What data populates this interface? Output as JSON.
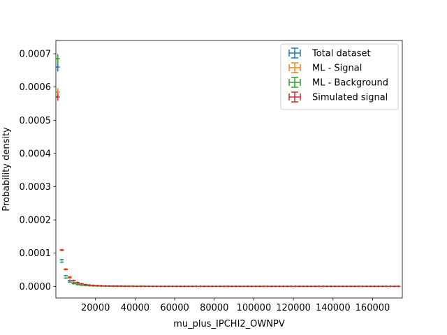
{
  "chart_data": {
    "type": "scatter",
    "xlabel": "mu_plus_IPCHI2_OWNPV",
    "ylabel": "Probability density",
    "xlim": [
      0,
      175000
    ],
    "ylim": [
      -3.5e-05,
      0.00074
    ],
    "x_ticks": [
      20000,
      40000,
      60000,
      80000,
      100000,
      120000,
      140000,
      160000
    ],
    "x_tick_labels": [
      "20000",
      "40000",
      "60000",
      "80000",
      "100000",
      "120000",
      "140000",
      "160000"
    ],
    "y_ticks": [
      0,
      0.0001,
      0.0002,
      0.0003,
      0.0004,
      0.0005,
      0.0006,
      0.0007
    ],
    "y_tick_labels": [
      "0.0000",
      "0.0001",
      "0.0002",
      "0.0003",
      "0.0004",
      "0.0005",
      "0.0006",
      "0.0007"
    ],
    "grid": false,
    "legend_position": "top-right",
    "bin_width": 2000,
    "series": [
      {
        "name": "Total dataset",
        "color": "#1f77b4",
        "x": [
          1000,
          3000,
          5000,
          7000,
          9000,
          11000,
          13000,
          15000,
          17000,
          19000,
          21000,
          23000,
          25000,
          27000,
          29000,
          31000,
          33000,
          35000,
          37000,
          39000,
          41000,
          43000,
          45000,
          47000,
          49000,
          51000,
          53000,
          55000,
          57000,
          59000,
          61000,
          63000,
          65000,
          67000,
          69000,
          71000,
          73000,
          75000,
          77000,
          79000,
          81000,
          83000,
          85000,
          87000,
          89000,
          91000,
          93000,
          95000,
          97000,
          99000,
          101000,
          103000,
          105000,
          107000,
          109000,
          111000,
          113000,
          115000,
          117000,
          119000,
          121000,
          123000,
          125000,
          127000,
          129000,
          131000,
          133000,
          135000,
          137000,
          139000,
          141000,
          143000,
          145000,
          147000,
          149000,
          151000,
          153000,
          155000,
          157000,
          159000,
          161000,
          163000,
          165000,
          167000,
          169000,
          171000,
          173000
        ],
        "y": [
          0.00066,
          8e-05,
          3.2e-05,
          1.8e-05,
          1.1e-05,
          7e-06,
          5e-06,
          3.5e-06,
          2.5e-06,
          2e-06,
          1.5e-06,
          1.2e-06,
          1e-06,
          8e-07,
          7e-07,
          6e-07,
          5e-07,
          4e-07,
          4e-07,
          3e-07,
          3e-07,
          3e-07,
          2e-07,
          2e-07,
          2e-07,
          2e-07,
          1e-07,
          1e-07,
          1e-07,
          1e-07,
          1e-07,
          1e-07,
          1e-07,
          1e-07,
          1e-07,
          1e-07,
          1e-07,
          1e-07,
          1e-07,
          1e-07,
          1e-07,
          1e-07,
          1e-07,
          1e-07,
          1e-07,
          1e-07,
          1e-07,
          1e-07,
          1e-07,
          1e-07,
          1e-07,
          1e-07,
          1e-07,
          1e-07,
          1e-07,
          1e-07,
          1e-07,
          1e-07,
          1e-07,
          1e-07,
          1e-07,
          1e-07,
          1e-07,
          1e-07,
          1e-07,
          1e-07,
          1e-07,
          1e-07,
          1e-07,
          1e-07,
          1e-07,
          1e-07,
          1e-07,
          1e-07,
          1e-07,
          1e-07,
          1e-07,
          1e-07,
          1e-07,
          1e-07,
          1e-07,
          1e-07,
          1e-07,
          1e-07,
          1e-07,
          1e-07,
          1e-07
        ]
      },
      {
        "name": "ML - Signal",
        "color": "#ff7f0e",
        "x": [
          1000,
          3000,
          5000,
          7000,
          9000,
          11000,
          13000,
          15000,
          17000,
          19000,
          21000,
          23000,
          25000,
          27000,
          29000,
          31000,
          33000,
          35000,
          37000,
          39000,
          41000,
          43000,
          45000,
          47000,
          49000,
          51000,
          53000,
          55000,
          57000,
          59000,
          61000,
          63000,
          65000,
          67000,
          69000,
          71000,
          73000,
          75000,
          77000,
          79000,
          81000,
          83000,
          85000,
          87000,
          89000,
          91000,
          93000,
          95000,
          97000,
          99000,
          101000,
          103000,
          105000,
          107000,
          109000,
          111000,
          113000,
          115000,
          117000,
          119000,
          121000,
          123000,
          125000,
          127000,
          129000,
          131000,
          133000,
          135000,
          137000,
          139000,
          141000,
          143000,
          145000,
          147000,
          149000,
          151000,
          153000,
          155000,
          157000,
          159000,
          161000,
          163000,
          165000,
          167000,
          169000,
          171000,
          173000
        ],
        "y": [
          0.000585,
          0.000108,
          5e-05,
          2.5e-05,
          1.6e-05,
          1e-05,
          7e-06,
          5e-06,
          3.8e-06,
          3e-06,
          2.3e-06,
          1.8e-06,
          1.5e-06,
          1.2e-06,
          1e-06,
          9e-07,
          7e-07,
          6e-07,
          6e-07,
          5e-07,
          4e-07,
          4e-07,
          3e-07,
          3e-07,
          3e-07,
          2e-07,
          2e-07,
          2e-07,
          2e-07,
          2e-07,
          1e-07,
          1e-07,
          1e-07,
          1e-07,
          1e-07,
          1e-07,
          1e-07,
          1e-07,
          1e-07,
          1e-07,
          1e-07,
          1e-07,
          1e-07,
          1e-07,
          1e-07,
          1e-07,
          1e-07,
          1e-07,
          1e-07,
          1e-07,
          1e-07,
          1e-07,
          1e-07,
          1e-07,
          1e-07,
          1e-07,
          1e-07,
          1e-07,
          1e-07,
          1e-07,
          1e-07,
          1e-07,
          1e-07,
          1e-07,
          1e-07,
          1e-07,
          1e-07,
          1e-07,
          1e-07,
          1e-07,
          1e-07,
          1e-07,
          1e-07,
          1e-07,
          1e-07,
          1e-07,
          1e-07,
          1e-07,
          1e-07,
          1e-07,
          1e-07,
          1e-07,
          1e-07,
          1e-07,
          1e-07,
          1e-07,
          1e-07
        ]
      },
      {
        "name": "ML - Background",
        "color": "#2ca02c",
        "x": [
          1000,
          3000,
          5000,
          7000,
          9000,
          11000,
          13000,
          15000,
          17000,
          19000,
          21000,
          23000,
          25000,
          27000,
          29000,
          31000,
          33000,
          35000,
          37000,
          39000,
          41000,
          43000,
          45000,
          47000,
          49000,
          51000,
          53000,
          55000,
          57000,
          59000,
          61000,
          63000,
          65000,
          67000,
          69000,
          71000,
          73000,
          75000,
          77000,
          79000,
          81000,
          83000,
          85000,
          87000,
          89000,
          91000,
          93000,
          95000,
          97000,
          99000,
          101000,
          103000,
          105000,
          107000,
          109000,
          111000,
          113000,
          115000,
          117000,
          119000,
          121000,
          123000,
          125000,
          127000,
          129000,
          131000,
          133000,
          135000,
          137000,
          139000,
          141000,
          143000,
          145000,
          147000,
          149000,
          151000,
          153000,
          155000,
          157000,
          159000,
          161000,
          163000,
          165000,
          167000,
          169000,
          171000,
          173000
        ],
        "y": [
          0.000685,
          7.3e-05,
          2.5e-05,
          1.3e-05,
          8e-06,
          5e-06,
          3.5e-06,
          2.5e-06,
          1.8e-06,
          1.4e-06,
          1e-06,
          8e-07,
          7e-07,
          6e-07,
          5e-07,
          4e-07,
          3e-07,
          3e-07,
          3e-07,
          2e-07,
          2e-07,
          2e-07,
          2e-07,
          1e-07,
          1e-07,
          1e-07,
          1e-07,
          1e-07,
          1e-07,
          1e-07,
          1e-07,
          1e-07,
          1e-07,
          1e-07,
          1e-07,
          1e-07,
          1e-07,
          1e-07,
          1e-07,
          1e-07,
          1e-07,
          1e-07,
          1e-07,
          1e-07,
          1e-07,
          1e-07,
          1e-07,
          1e-07,
          1e-07,
          1e-07,
          1e-07,
          1e-07,
          1e-07,
          1e-07,
          1e-07,
          1e-07,
          1e-07,
          1e-07,
          1e-07,
          1e-07,
          1e-07,
          1e-07,
          1e-07,
          1e-07,
          1e-07,
          1e-07,
          1e-07,
          1e-07,
          1e-07,
          1e-07,
          1e-07,
          1e-07,
          1e-07,
          1e-07,
          1e-07,
          1e-07,
          1e-07,
          1e-07,
          1e-07,
          1e-07,
          1e-07,
          1e-07,
          1e-07,
          1e-07,
          1e-07,
          1e-07,
          1e-07
        ]
      },
      {
        "name": "Simulated signal",
        "color": "#d62728",
        "x": [
          1000,
          3000,
          5000,
          7000,
          9000,
          11000,
          13000,
          15000,
          17000,
          19000,
          21000,
          23000,
          25000,
          27000,
          29000,
          31000,
          33000,
          35000,
          37000,
          39000,
          41000,
          43000,
          45000,
          47000,
          49000,
          51000,
          53000,
          55000,
          57000,
          59000,
          61000,
          63000,
          65000,
          67000,
          69000,
          71000,
          73000,
          75000,
          77000,
          79000,
          81000,
          83000,
          85000,
          87000,
          89000,
          91000,
          93000,
          95000,
          97000,
          99000,
          101000,
          103000,
          105000,
          107000,
          109000,
          111000,
          113000,
          115000,
          117000,
          119000,
          121000,
          123000,
          125000,
          127000,
          129000,
          131000,
          133000,
          135000,
          137000,
          139000,
          141000,
          143000,
          145000,
          147000,
          149000,
          151000,
          153000,
          155000,
          157000,
          159000,
          161000,
          163000,
          165000,
          167000,
          169000,
          171000,
          173000
        ],
        "y": [
          0.00057,
          0.00011,
          5.2e-05,
          2.8e-05,
          1.8e-05,
          1.2e-05,
          8e-06,
          5.5e-06,
          4e-06,
          3e-06,
          2.4e-06,
          1.9e-06,
          1.5e-06,
          1.2e-06,
          1e-06,
          9e-07,
          7e-07,
          6e-07,
          5e-07,
          5e-07,
          4e-07,
          4e-07,
          3e-07,
          3e-07,
          3e-07,
          2e-07,
          2e-07,
          2e-07,
          2e-07,
          2e-07,
          1e-07,
          1e-07,
          1e-07,
          1e-07,
          1e-07,
          1e-07,
          1e-07,
          1e-07,
          1e-07,
          1e-07,
          1e-07,
          1e-07,
          1e-07,
          1e-07,
          1e-07,
          1e-07,
          1e-07,
          1e-07,
          1e-07,
          1e-07,
          1e-07,
          1e-07,
          1e-07,
          1e-07,
          1e-07,
          1e-07,
          1e-07,
          1e-07,
          1e-07,
          1e-07,
          1e-07,
          1e-07,
          1e-07,
          1e-07,
          1e-07,
          1e-07,
          1e-07,
          1e-07,
          1e-07,
          1e-07,
          1e-07,
          1e-07,
          1e-07,
          1e-07,
          1e-07,
          1e-07,
          1e-07,
          1e-07,
          1e-07,
          1e-07,
          1e-07,
          1e-07,
          1e-07,
          1e-07,
          1e-07,
          1e-07,
          1e-07
        ]
      }
    ]
  }
}
